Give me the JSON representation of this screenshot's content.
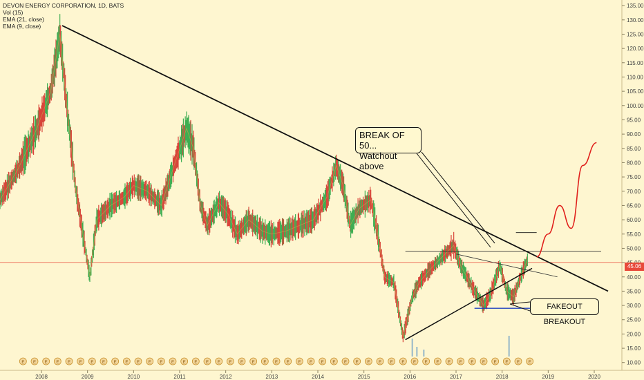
{
  "legend": {
    "title": "DEVON ENERGY CORPORATION, 1D, BATS",
    "vol": "Vol (15)",
    "ema21": "EMA (21, close)",
    "ema9": "EMA (9, close)"
  },
  "annotations": {
    "break": [
      "BREAK OF 50...",
      "Watchout above"
    ],
    "fakeout": "FAKEOUT BREAKOUT"
  },
  "last_price": "45.06",
  "colors": {
    "background": "#fef6d0",
    "up": "#3fae53",
    "down": "#d8453a",
    "price_line": "#e8493a",
    "projection": "#e0201c",
    "support_line": "#2040c0",
    "trendline": "#111111"
  },
  "chart_data": {
    "type": "line",
    "title": "DEVON ENERGY CORPORATION, 1D, BATS",
    "xlabel": "",
    "ylabel": "",
    "x_ticks": [
      "2008",
      "2009",
      "2010",
      "2011",
      "2012",
      "2013",
      "2014",
      "2015",
      "2016",
      "2017",
      "2018",
      "2019",
      "2020"
    ],
    "y_ticks": [
      10,
      15,
      20,
      25,
      30,
      35,
      40,
      45,
      50,
      55,
      60,
      65,
      70,
      75,
      80,
      85,
      90,
      95,
      100,
      105,
      110,
      115,
      120,
      125,
      130,
      135
    ],
    "ylim": [
      8,
      136
    ],
    "xlim": [
      2007.1,
      2020.6
    ],
    "series": [
      {
        "x": [
          2007.1,
          2007.5,
          2007.9,
          2008.2,
          2008.4,
          2008.55,
          2008.75,
          2008.9,
          2009.05,
          2009.2,
          2009.5,
          2009.8,
          2010.0,
          2010.3,
          2010.6,
          2010.9,
          2011.15,
          2011.3,
          2011.45,
          2011.6,
          2011.85,
          2012.05,
          2012.25,
          2012.5,
          2012.8,
          2013.0,
          2013.3,
          2013.6,
          2013.9,
          2014.2,
          2014.4,
          2014.55,
          2014.7,
          2014.9,
          2015.15,
          2015.3,
          2015.45,
          2015.65,
          2015.85,
          2016.05,
          2016.2,
          2016.4,
          2016.7,
          2016.95,
          2017.1,
          2017.4,
          2017.6,
          2017.75,
          2017.95,
          2018.1,
          2018.25,
          2018.4,
          2018.55
        ],
        "values": [
          67,
          78,
          92,
          105,
          125,
          100,
          70,
          55,
          40,
          60,
          65,
          68,
          72,
          70,
          65,
          80,
          92,
          85,
          65,
          58,
          66,
          62,
          55,
          60,
          56,
          55,
          56,
          58,
          60,
          68,
          79,
          72,
          58,
          64,
          67,
          55,
          40,
          38,
          19,
          33,
          38,
          42,
          47,
          51,
          44,
          35,
          30,
          34,
          44,
          35,
          33,
          40,
          46
        ]
      }
    ],
    "markers": [
      {
        "label": "BREAK OF 50... Watchout above",
        "x": 2017.8,
        "y": 48
      },
      {
        "label": "FAKEOUT BREAKOUT",
        "x": 2018.1,
        "y": 33
      }
    ],
    "trendlines": [
      {
        "x1": 2008.45,
        "y1": 128,
        "x2": 2020.3,
        "y2": 35
      },
      {
        "x1": 2015.9,
        "y1": 18,
        "x2": 2018.65,
        "y2": 43
      },
      {
        "x1": 2017.0,
        "y1": 48,
        "x2": 2019.2,
        "y2": 40
      },
      {
        "x1": 2015.9,
        "y1": 49,
        "x2": 2020.15,
        "y2": 49
      },
      {
        "x1": 2017.4,
        "y1": 29,
        "x2": 2018.65,
        "y2": 29
      },
      {
        "x1": 2018.3,
        "y1": 55.5,
        "x2": 2018.75,
        "y2": 55.5
      }
    ],
    "projection": {
      "x": [
        2018.75,
        2019.0,
        2019.25,
        2019.5,
        2019.75,
        2020.05
      ],
      "values": [
        47,
        55,
        65,
        57,
        79,
        87
      ]
    },
    "last_price": 45.06,
    "grid": false
  }
}
